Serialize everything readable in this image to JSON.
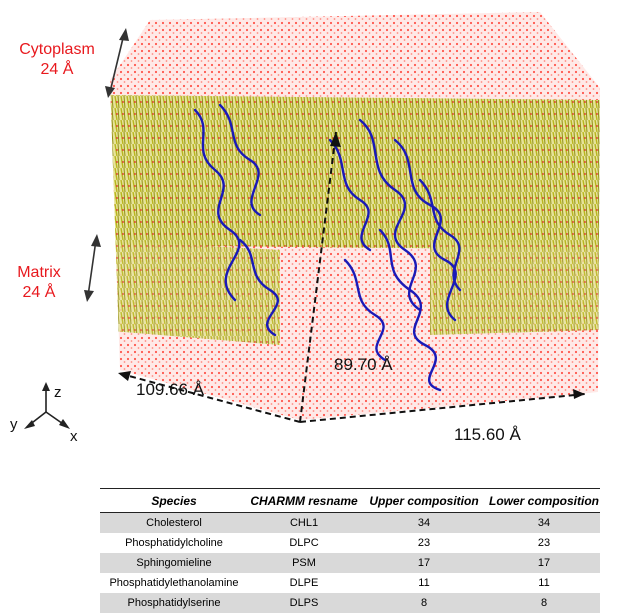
{
  "labels": {
    "cytoplasm": "Cytoplasm",
    "cytoplasm_thickness": "24 Å",
    "matrix": "Matrix",
    "matrix_thickness": "24 Å",
    "dim_depth": "109.66 Å",
    "dim_height": "89.70 Å",
    "dim_width": "115.60 Å",
    "axis_z": "z",
    "axis_y": "y",
    "axis_x": "x"
  },
  "colors": {
    "water": "#ff3b30",
    "lipid": "#b8b51e",
    "protein": "#1a1ab8",
    "label_red": "#e8191e",
    "table_shade": "#d9d9d9"
  },
  "table": {
    "headers": [
      "Species",
      "CHARMM resname",
      "Upper composition",
      "Lower composition"
    ],
    "rows": [
      [
        "Cholesterol",
        "CHL1",
        "34",
        "34"
      ],
      [
        "Phosphatidylcholine",
        "DLPC",
        "23",
        "23"
      ],
      [
        "Sphingomieline",
        "PSM",
        "17",
        "17"
      ],
      [
        "Phosphatidylethanolamine",
        "DLPE",
        "11",
        "11"
      ],
      [
        "Phosphatidylserine",
        "DLPS",
        "8",
        "8"
      ]
    ]
  }
}
